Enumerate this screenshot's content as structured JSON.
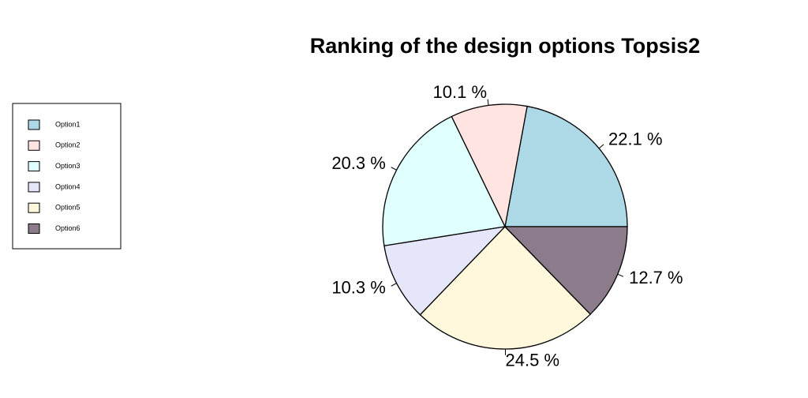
{
  "chart_data": {
    "type": "pie",
    "title": "Ranking of the design options Topsis2",
    "categories": [
      "Option1",
      "Option2",
      "Option3",
      "Option4",
      "Option5",
      "Option6"
    ],
    "values": [
      22.1,
      10.1,
      20.3,
      10.3,
      24.5,
      12.7
    ],
    "value_labels": [
      "22.1 %",
      "10.1 %",
      "20.3 %",
      "10.3 %",
      "24.5 %",
      "12.7 %"
    ],
    "colors": [
      "#add8e6",
      "#ffe4e1",
      "#e0ffff",
      "#e6e6fa",
      "#fff8dc",
      "#8b7b8b"
    ]
  }
}
